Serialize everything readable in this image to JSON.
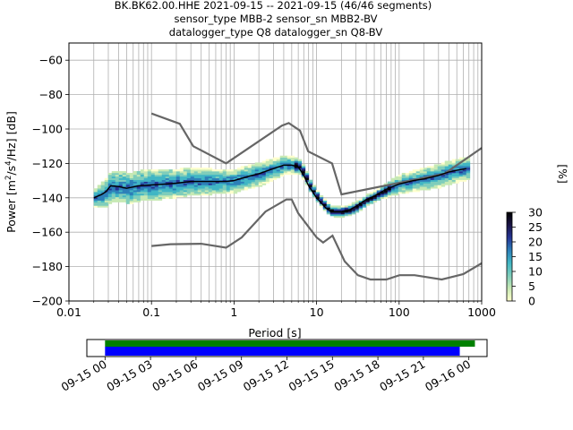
{
  "title_lines": [
    "BK.BK62.00.HHE   2021-09-15 -- 2021-09-15  (46/46 segments)",
    "sensor_type MBB-2 sensor_sn MBB2-BV",
    "datalogger_type Q8 datalogger_sn Q8-BV"
  ],
  "colors": {
    "noise_model": "#666666",
    "mean_line": "#000000",
    "coverage_green": "#008000",
    "coverage_blue": "#0000ff",
    "cmap": [
      "#ffffcc",
      "#c7e9b4",
      "#7fcdbb",
      "#41b6c4",
      "#2c7fb8",
      "#253494",
      "#1a1446",
      "#000000"
    ]
  },
  "chart_data": [
    {
      "type": "heatmap",
      "name": "ppsd",
      "xlabel": "Period [s]",
      "ylabel": "Power [m²/s⁴/Hz] [dB]",
      "ylabel_parts": {
        "prefix": "Power [m",
        "sup1": "2",
        "mid1": "/s",
        "sup2": "4",
        "suffix": "/Hz] [dB]"
      },
      "x_scale": "log",
      "xlim": [
        0.01,
        1000
      ],
      "ylim": [
        -200,
        -50
      ],
      "x_ticks": [
        0.01,
        0.1,
        1,
        10,
        100,
        1000
      ],
      "x_tick_labels": [
        "0.01",
        "0.1",
        "1",
        "10",
        "100",
        "1000"
      ],
      "y_ticks": [
        -200,
        -180,
        -160,
        -140,
        -120,
        -100,
        -80,
        -60
      ],
      "y_tick_labels": [
        "−200",
        "−180",
        "−160",
        "−140",
        "−120",
        "−100",
        "−80",
        "−60"
      ],
      "grid": true,
      "noise_models": {
        "high": [
          [
            0.1,
            -91
          ],
          [
            0.22,
            -97
          ],
          [
            0.32,
            -110
          ],
          [
            0.8,
            -120
          ],
          [
            3.8,
            -98
          ],
          [
            4.6,
            -96.5
          ],
          [
            6.3,
            -101
          ],
          [
            7.9,
            -113
          ],
          [
            15.4,
            -120
          ],
          [
            20,
            -138
          ],
          [
            354.8,
            -126
          ],
          [
            1000,
            -111
          ]
        ],
        "low": [
          [
            0.1,
            -168
          ],
          [
            0.17,
            -167
          ],
          [
            0.4,
            -166.7
          ],
          [
            0.8,
            -169
          ],
          [
            1.24,
            -163
          ],
          [
            2.4,
            -148
          ],
          [
            4.3,
            -141
          ],
          [
            5,
            -141
          ],
          [
            6,
            -149
          ],
          [
            10,
            -163
          ],
          [
            12,
            -166
          ],
          [
            15.6,
            -162
          ],
          [
            21.9,
            -177
          ],
          [
            31.6,
            -185
          ],
          [
            45,
            -187.5
          ],
          [
            70,
            -187.5
          ],
          [
            101,
            -185
          ],
          [
            154,
            -185
          ],
          [
            328,
            -187.5
          ],
          [
            600,
            -184.4
          ],
          [
            1000,
            -178
          ]
        ]
      },
      "mean_curve": [
        [
          0.02,
          -140
        ],
        [
          0.025,
          -138
        ],
        [
          0.028,
          -136.5
        ],
        [
          0.032,
          -133
        ],
        [
          0.04,
          -133.5
        ],
        [
          0.05,
          -134.5
        ],
        [
          0.07,
          -133
        ],
        [
          0.1,
          -132.5
        ],
        [
          0.15,
          -132
        ],
        [
          0.2,
          -131.5
        ],
        [
          0.3,
          -130.5
        ],
        [
          0.5,
          -130.5
        ],
        [
          0.8,
          -130.5
        ],
        [
          1,
          -130
        ],
        [
          1.5,
          -127.5
        ],
        [
          2,
          -126
        ],
        [
          3,
          -123
        ],
        [
          4,
          -121
        ],
        [
          5,
          -121
        ],
        [
          6,
          -122
        ],
        [
          7,
          -127
        ],
        [
          8,
          -133
        ],
        [
          10,
          -140
        ],
        [
          13,
          -146
        ],
        [
          15,
          -148
        ],
        [
          20,
          -148
        ],
        [
          25,
          -147
        ],
        [
          30,
          -145
        ],
        [
          40,
          -141
        ],
        [
          50,
          -139
        ],
        [
          70,
          -135
        ],
        [
          100,
          -132
        ],
        [
          150,
          -130
        ],
        [
          200,
          -129
        ],
        [
          300,
          -127
        ],
        [
          400,
          -125
        ],
        [
          500,
          -124
        ],
        [
          650,
          -123
        ]
      ],
      "spread_curve": [
        [
          0.02,
          3
        ],
        [
          0.03,
          6
        ],
        [
          0.05,
          6
        ],
        [
          0.1,
          6
        ],
        [
          0.3,
          5
        ],
        [
          0.8,
          4
        ],
        [
          2,
          4
        ],
        [
          4,
          3
        ],
        [
          7,
          2
        ],
        [
          10,
          1.5
        ],
        [
          20,
          1.5
        ],
        [
          50,
          1.5
        ],
        [
          100,
          3
        ],
        [
          300,
          4
        ],
        [
          650,
          4
        ]
      ]
    },
    {
      "type": "bar",
      "name": "coverage",
      "x_ticks": [
        "2021-09-15 00:00",
        "2021-09-15 03:00",
        "2021-09-15 06:00",
        "2021-09-15 09:00",
        "2021-09-15 12:00",
        "2021-09-15 15:00",
        "2021-09-15 18:00",
        "2021-09-15 21:00",
        "2021-09-16 00:00"
      ],
      "x_tick_labels": [
        "09-15 00",
        "09-15 03",
        "09-15 06",
        "09-15 09",
        "09-15 12",
        "09-15 15",
        "09-15 18",
        "09-15 21",
        "09-16 00"
      ],
      "xlim_hours": [
        -1.2,
        25.2
      ],
      "bars": [
        {
          "color": "green",
          "start_hour": 0,
          "end_hour": 24.4
        },
        {
          "color": "blue",
          "start_hour": 0,
          "end_hour": 23.4
        }
      ]
    },
    {
      "type": "colorbar",
      "name": "colorbar",
      "label": "[%]",
      "range": [
        0,
        30
      ],
      "ticks": [
        0,
        5,
        10,
        15,
        20,
        25,
        30
      ],
      "tick_labels": [
        "0",
        "5",
        "10",
        "15",
        "20",
        "25",
        "30"
      ]
    }
  ]
}
